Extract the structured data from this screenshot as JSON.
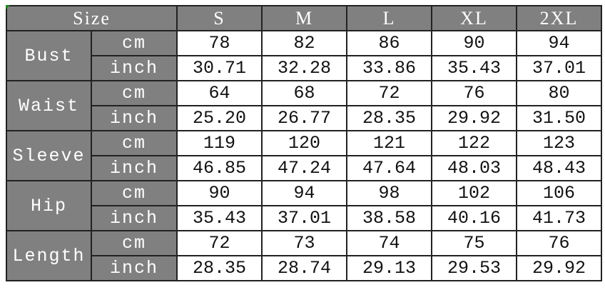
{
  "header": {
    "size_label": "Size",
    "sizes": [
      "S",
      "M",
      "L",
      "XL",
      "2XL"
    ]
  },
  "units": {
    "cm": "cm",
    "inch": "inch"
  },
  "colors": {
    "header_bg": "#808080",
    "header_text": "#ffffff"
  },
  "rows": [
    {
      "label": "Bust",
      "cm": [
        "78",
        "82",
        "86",
        "90",
        "94"
      ],
      "inch": [
        "30.71",
        "32.28",
        "33.86",
        "35.43",
        "37.01"
      ]
    },
    {
      "label": "Waist",
      "cm": [
        "64",
        "68",
        "72",
        "76",
        "80"
      ],
      "inch": [
        "25.20",
        "26.77",
        "28.35",
        "29.92",
        "31.50"
      ]
    },
    {
      "label": "Sleeve",
      "cm": [
        "119",
        "120",
        "121",
        "122",
        "123"
      ],
      "inch": [
        "46.85",
        "47.24",
        "47.64",
        "48.03",
        "48.43"
      ]
    },
    {
      "label": "Hip",
      "cm": [
        "90",
        "94",
        "98",
        "102",
        "106"
      ],
      "inch": [
        "35.43",
        "37.01",
        "38.58",
        "40.16",
        "41.73"
      ]
    },
    {
      "label": "Length",
      "cm": [
        "72",
        "73",
        "74",
        "75",
        "76"
      ],
      "inch": [
        "28.35",
        "28.74",
        "29.13",
        "29.53",
        "29.92"
      ]
    }
  ]
}
